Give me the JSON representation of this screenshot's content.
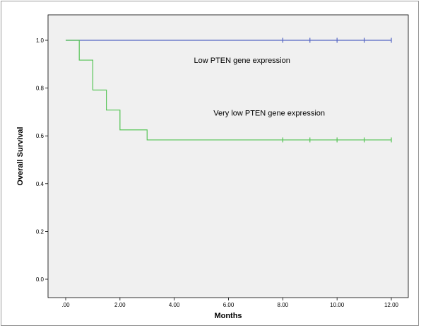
{
  "chart_data": {
    "type": "line",
    "title": "",
    "xlabel": "Months",
    "ylabel": "Overall Survival",
    "xlim": [
      0,
      12
    ],
    "ylim": [
      0,
      1
    ],
    "x_ticks": [
      0,
      2,
      4,
      6,
      8,
      10,
      12
    ],
    "x_tick_labels": [
      ".00",
      "2.00",
      "4.00",
      "6.00",
      "8.00",
      "10.00",
      "12.00"
    ],
    "y_ticks": [
      0,
      0.2,
      0.4,
      0.6,
      0.8,
      1.0
    ],
    "y_tick_labels": [
      "0.0",
      "0.2",
      "0.4",
      "0.6",
      "0.8",
      "1.0"
    ],
    "grid": false,
    "plot_background": "#f0f0f0",
    "series": [
      {
        "name": "Low PTEN gene expression",
        "color": "#5566c4",
        "step": true,
        "x": [
          0,
          12
        ],
        "y": [
          1.0,
          1.0
        ],
        "censored_x": [
          8,
          9,
          10,
          11,
          12
        ]
      },
      {
        "name": "Very low PTEN gene expression",
        "color": "#55c455",
        "step": true,
        "x": [
          0,
          0.5,
          1,
          1.5,
          2,
          3,
          12
        ],
        "y": [
          1.0,
          0.917,
          0.792,
          0.708,
          0.625,
          0.583,
          0.583
        ],
        "censored_x": [
          8,
          9,
          10,
          11,
          12
        ]
      }
    ],
    "annotations": [
      {
        "text": "Low PTEN gene expression",
        "x": 6.5,
        "y": 0.905
      },
      {
        "text": "Very low PTEN gene expression",
        "x": 7.5,
        "y": 0.685
      }
    ]
  }
}
